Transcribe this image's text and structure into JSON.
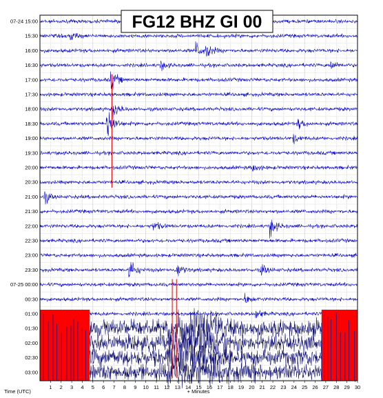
{
  "chart_data": {
    "type": "line",
    "title": "FG12 BHZ GI 00",
    "xlabel": "+ Minutes",
    "ylabel": "Time (UTC)",
    "x_ticks": [
      "1",
      "2",
      "3",
      "4",
      "5",
      "6",
      "7",
      "8",
      "9",
      "10",
      "11",
      "12",
      "13",
      "14",
      "15",
      "16",
      "17",
      "18",
      "19",
      "20",
      "21",
      "22",
      "23",
      "24",
      "25",
      "26",
      "27",
      "28",
      "29",
      "30"
    ],
    "xlim": [
      0,
      30
    ],
    "row_labels": [
      "07-24 15:00",
      "15:30",
      "16:00",
      "16:30",
      "17:00",
      "17:30",
      "18:00",
      "18:30",
      "19:00",
      "19:30",
      "20:00",
      "20:30",
      "21:00",
      "21:30",
      "22:00",
      "22:30",
      "23:00",
      "23:30",
      "07-25 00:00",
      "00:30",
      "01:00",
      "01:30",
      "02:00",
      "02:30",
      "03:00"
    ],
    "grid": true,
    "colors": {
      "trace": "#0000c8",
      "clipped": "#ff0000",
      "dense": "#0b0b6e"
    },
    "events": [
      {
        "row": "15:30",
        "minute": 3.0,
        "amplitude": 0.6
      },
      {
        "row": "16:00",
        "minute": 14.8,
        "amplitude": 1.1
      },
      {
        "row": "16:00",
        "minute": 15.8,
        "amplitude": 0.9
      },
      {
        "row": "16:30",
        "minute": 11.5,
        "amplitude": 0.5
      },
      {
        "row": "16:30",
        "minute": 27.5,
        "amplitude": 0.6
      },
      {
        "row": "17:00",
        "minute": 6.8,
        "amplitude": 1.2
      },
      {
        "row": "18:00",
        "minute": 7.0,
        "amplitude": 1.0
      },
      {
        "row": "18:30",
        "minute": 6.4,
        "amplitude": 2.6
      },
      {
        "row": "18:30",
        "minute": 24.5,
        "amplitude": 0.6
      },
      {
        "row": "19:00",
        "minute": 24.0,
        "amplitude": 0.5
      },
      {
        "row": "20:00",
        "minute": 20.2,
        "amplitude": 0.5
      },
      {
        "row": "21:00",
        "minute": 0.5,
        "amplitude": 0.7
      },
      {
        "row": "22:00",
        "minute": 21.8,
        "amplitude": 1.3
      },
      {
        "row": "22:00",
        "minute": 10.8,
        "amplitude": 0.6
      },
      {
        "row": "23:30",
        "minute": 8.5,
        "amplitude": 1.6
      },
      {
        "row": "23:30",
        "minute": 13.0,
        "amplitude": 0.9
      },
      {
        "row": "23:30",
        "minute": 21.0,
        "amplitude": 0.7
      },
      {
        "row": "00:30",
        "minute": 19.5,
        "amplitude": 0.6
      },
      {
        "row": "01:00",
        "minute": 20.5,
        "amplitude": 0.6
      }
    ],
    "clipped_segments": [
      {
        "rows": [
          "01:00",
          "03:00"
        ],
        "start_minute": 0.0,
        "end_minute": 4.7
      },
      {
        "rows": [
          "01:00",
          "03:00"
        ],
        "start_minute": 26.6,
        "end_minute": 30.0
      }
    ]
  }
}
